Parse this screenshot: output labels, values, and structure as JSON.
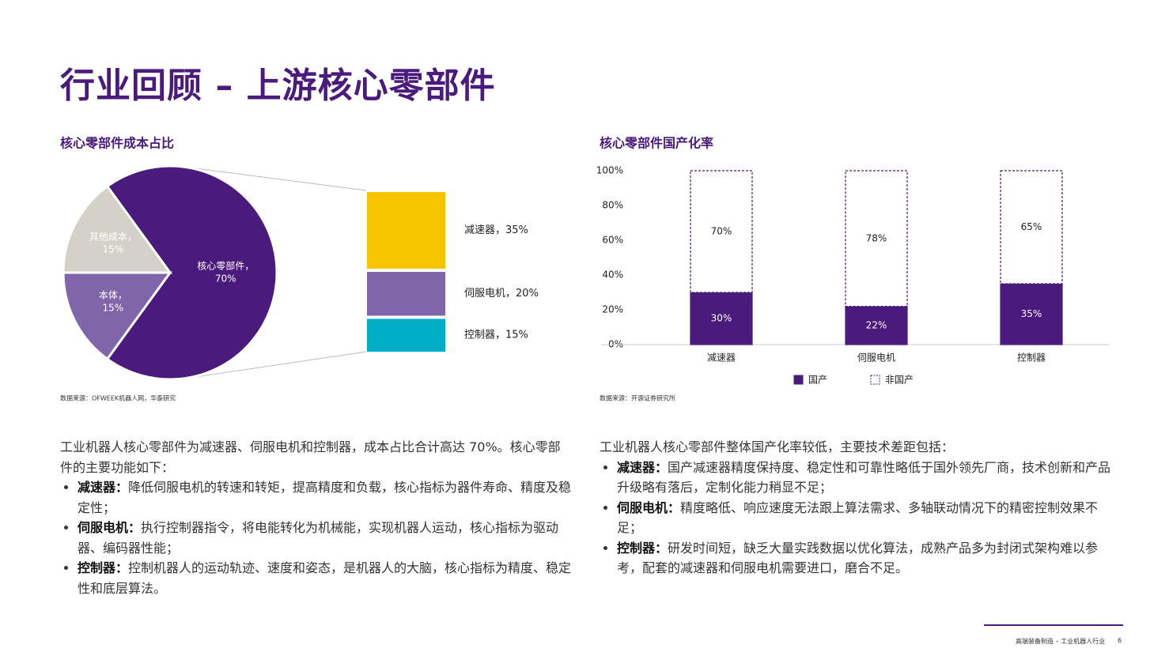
{
  "title": "行业回顾 – 上游核心零部件",
  "chart_data": [
    {
      "type": "pie",
      "title": "核心零部件成本占比",
      "categories": [
        "核心零部件，",
        "本体，",
        "其他成本，"
      ],
      "values": [
        70,
        15,
        15
      ],
      "value_labels": [
        "70%",
        "15%",
        "15%"
      ],
      "colors": [
        "#4a1a7c",
        "#8065aa",
        "#d5d0c8"
      ],
      "breakdown": {
        "labels": [
          "减速器，35%",
          "伺服电机，20%",
          "控制器，15%"
        ],
        "values": [
          35,
          20,
          15
        ],
        "colors": [
          "#f6c500",
          "#8065aa",
          "#00aec8"
        ]
      },
      "source": "数据来源：OFWEEK机器人网，华泰研究"
    },
    {
      "type": "bar",
      "stacked": true,
      "title": "核心零部件国产化率",
      "categories": [
        "减速器",
        "伺服电机",
        "控制器"
      ],
      "series": [
        {
          "name": "国产",
          "color": "#4a1a7c",
          "values": [
            30,
            22,
            35
          ],
          "value_labels": [
            "30%",
            "22%",
            "35%"
          ]
        },
        {
          "name": "非国产",
          "color": "#ffffff",
          "values": [
            70,
            78,
            65
          ],
          "value_labels": [
            "70%",
            "78%",
            "65%"
          ]
        }
      ],
      "ylim": [
        0,
        100
      ],
      "yticks": [
        {
          "value": 0,
          "label": "0%"
        },
        {
          "value": 20,
          "label": "20%"
        },
        {
          "value": 40,
          "label": "40%"
        },
        {
          "value": 60,
          "label": "60%"
        },
        {
          "value": 80,
          "label": "80%"
        },
        {
          "value": 100,
          "label": "100%"
        }
      ],
      "source": "数据来源：开源证券研究所"
    }
  ],
  "left_text": {
    "intro": "工业机器人核心零部件为减速器、伺服电机和控制器，成本占比合计高达 70%。核心零部件的主要功能如下：",
    "bullets": [
      {
        "term": "减速器：",
        "text": "降低伺服电机的转速和转矩，提高精度和负载，核心指标为器件寿命、精度及稳定性；"
      },
      {
        "term": "伺服电机：",
        "text": "执行控制器指令，将电能转化为机械能，实现机器人运动，核心指标为驱动器、编码器性能；"
      },
      {
        "term": "控制器：",
        "text": "控制机器人的运动轨迹、速度和姿态，是机器人的大脑，核心指标为精度、稳定性和底层算法。"
      }
    ]
  },
  "right_text": {
    "intro": "工业机器人核心零部件整体国产化率较低，主要技术差距包括：",
    "bullets": [
      {
        "term": "减速器：",
        "text": "国产减速器精度保持度、稳定性和可靠性略低于国外领先厂商，技术创新和产品升级略有落后，定制化能力稍显不足；"
      },
      {
        "term": "伺服电机：",
        "text": "精度略低、响应速度无法跟上算法需求、多轴联动情况下的精密控制效果不足；"
      },
      {
        "term": "控制器：",
        "text": "研发时间短，缺乏大量实践数据以优化算法，成熟产品多为封闭式架构难以参考，配套的减速器和伺服电机需要进口，磨合不足。"
      }
    ]
  },
  "footer": {
    "text": "高端装备制造 – 工业机器人行业",
    "page": "6"
  }
}
